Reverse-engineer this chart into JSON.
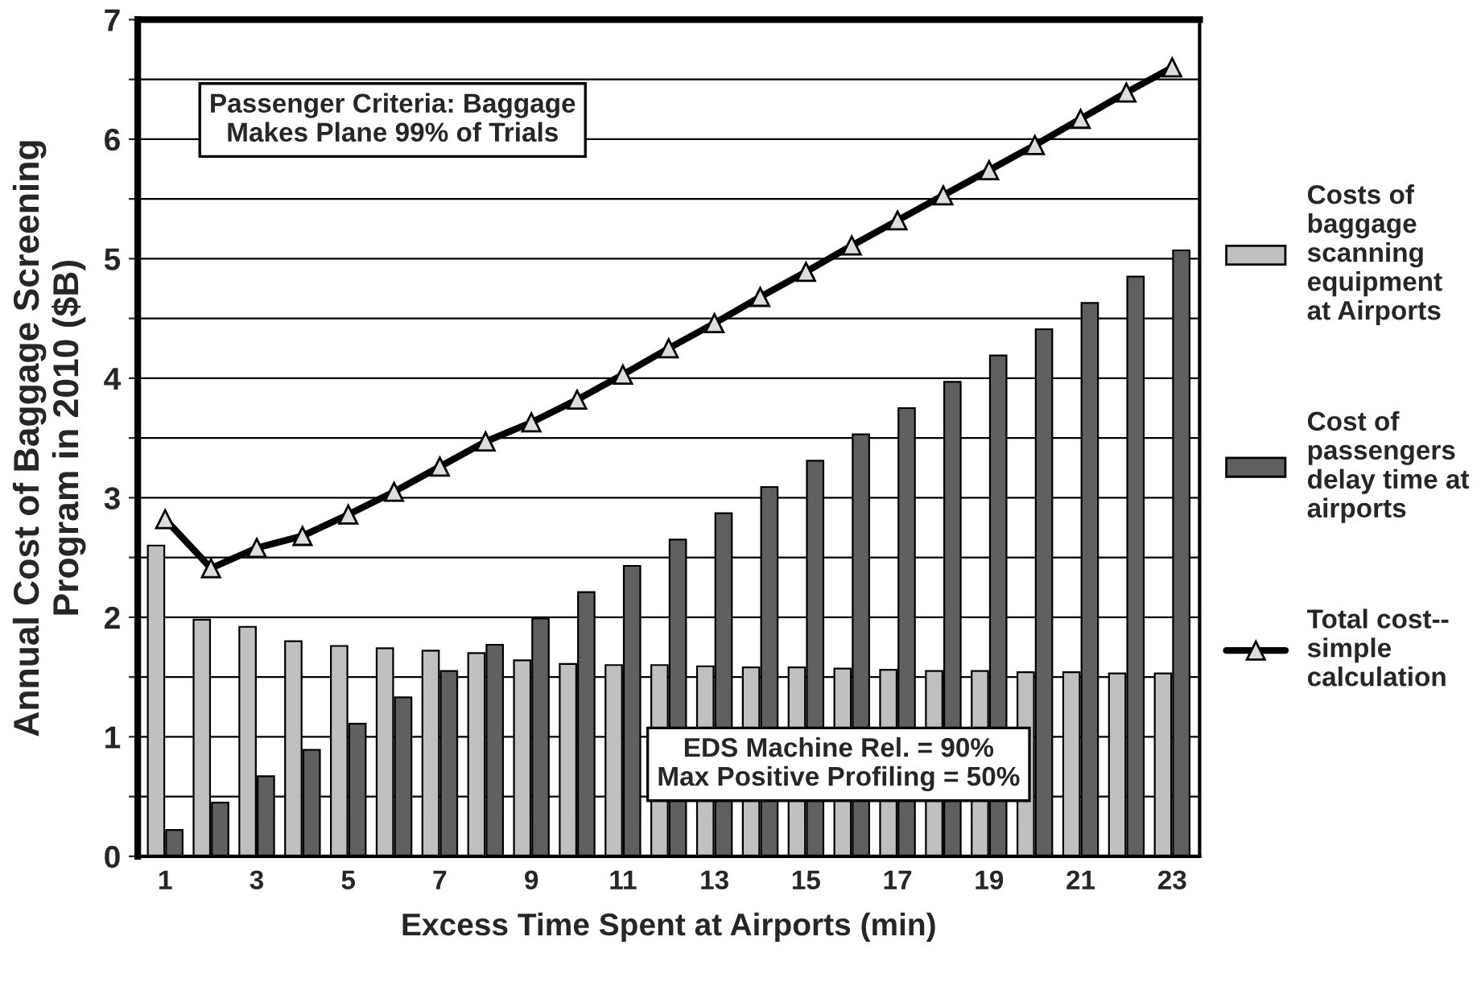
{
  "chart_data": {
    "type": "bar",
    "xlabel": "Excess Time Spent at Airports (min)",
    "ylabel": "Annual Cost of Baggage Screening\nProgram in 2010 ($B)",
    "categories": [
      "1",
      null,
      "3",
      null,
      "5",
      null,
      "7",
      null,
      "9",
      null,
      "11",
      null,
      "13",
      null,
      "15",
      null,
      "17",
      null,
      "19",
      null,
      "21",
      null,
      "23"
    ],
    "series": [
      {
        "name": "Costs of\nbaggage\nscanning\nequipment\nat Airports",
        "color": "#c0c0c0",
        "values": [
          2.6,
          1.98,
          1.92,
          1.8,
          1.76,
          1.74,
          1.72,
          1.7,
          1.64,
          1.61,
          1.6,
          1.6,
          1.59,
          1.58,
          1.58,
          1.57,
          1.56,
          1.55,
          1.55,
          1.54,
          1.54,
          1.53,
          1.53
        ]
      },
      {
        "name": "Cost of\npassengers\ndelay time at\nairports",
        "color": "#606060",
        "values": [
          0.22,
          0.45,
          0.67,
          0.89,
          1.11,
          1.33,
          1.55,
          1.77,
          1.99,
          2.21,
          2.43,
          2.65,
          2.87,
          3.09,
          3.31,
          3.53,
          3.75,
          3.97,
          4.19,
          4.41,
          4.63,
          4.85,
          5.07
        ]
      },
      {
        "name": "Total cost--\nsimple\ncalculation",
        "type": "line",
        "color": "#000000",
        "marker": "triangle",
        "values": [
          2.82,
          2.41,
          2.58,
          2.68,
          2.86,
          3.05,
          3.26,
          3.47,
          3.63,
          3.82,
          4.03,
          4.25,
          4.46,
          4.68,
          4.89,
          5.11,
          5.32,
          5.53,
          5.74,
          5.95,
          6.17,
          6.39,
          6.6
        ]
      }
    ],
    "ylim": [
      0,
      7
    ],
    "yticks": [
      0,
      {
        "value": 0.5,
        "label": null
      },
      1,
      {
        "value": 1.5,
        "label": null
      },
      2,
      {
        "value": 2.5,
        "label": null
      },
      3,
      {
        "value": 3.5,
        "label": null
      },
      4,
      {
        "value": 4.5,
        "label": null
      },
      5,
      {
        "value": 5.5,
        "label": null
      },
      6,
      {
        "value": 6.5,
        "label": null
      },
      7
    ],
    "grid": "y",
    "legend": "right",
    "annotations": [
      "Passenger Criteria: Baggage\nMakes Plane 99% of Trials",
      "EDS Machine Rel. = 90%\nMax Positive Profiling = 50%"
    ]
  }
}
